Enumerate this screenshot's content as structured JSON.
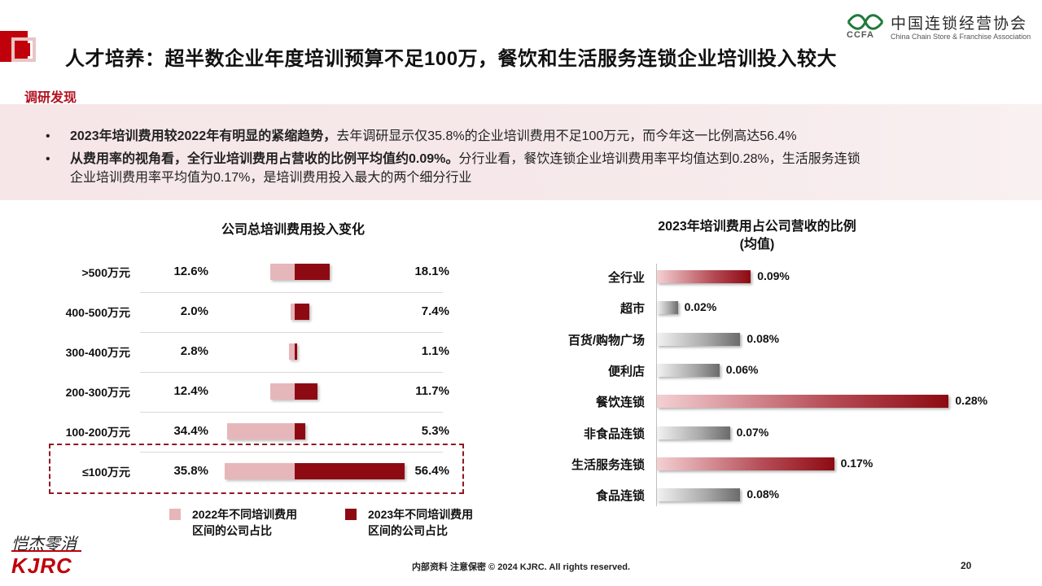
{
  "header": {
    "title": "人才培养：超半数企业年度培训预算不足100万，餐饮和生活服务连锁企业培训投入较大",
    "logo_cn": "中国连锁经营协会",
    "logo_en": "China Chain Store & Franchise Association",
    "logo_ccfa": "CCFA"
  },
  "findings": {
    "label": "调研发现",
    "bullets": [
      {
        "bold": "2023年培训费用较2022年有明显的紧缩趋势，",
        "text": "去年调研显示仅35.8%的企业培训费用不足100万元，而今年这一比例高达56.4%"
      },
      {
        "bold": "从费用率的视角看，全行业培训费用占营收的比例平均值约0.09%。",
        "text": "分行业看，餐饮连锁企业培训费用率平均值达到0.28%，生活服务连锁",
        "text2": "企业培训费用率平均值为0.17%，是培训费用投入最大的两个细分行业"
      }
    ]
  },
  "chart_data": [
    {
      "type": "bar",
      "title": "公司总培训费用投入变化",
      "categories": [
        ">500万元",
        "400-500万元",
        "300-400万元",
        "200-300万元",
        "100-200万元",
        "≤100万元"
      ],
      "series": [
        {
          "name": "2022年不同培训费用区间的公司占比",
          "values": [
            12.6,
            2.0,
            2.8,
            12.4,
            34.4,
            35.8
          ],
          "labels": [
            "12.6%",
            "2.0%",
            "2.8%",
            "12.4%",
            "34.4%",
            "35.8%"
          ],
          "color": "#e6b7ba"
        },
        {
          "name": "2023年不同培训费用区间的公司占比",
          "values": [
            18.1,
            7.4,
            1.1,
            11.7,
            5.3,
            56.4
          ],
          "labels": [
            "18.1%",
            "7.4%",
            "1.1%",
            "11.7%",
            "5.3%",
            "56.4%"
          ],
          "color": "#8e0a12"
        }
      ],
      "legend": [
        {
          "line1": "2022年不同培训费用",
          "line2": "区间的公司占比"
        },
        {
          "line1": "2023年不同培训费用",
          "line2": "区间的公司占比"
        }
      ]
    },
    {
      "type": "bar",
      "title_line1": "2023年培训费用占公司营收的比例",
      "title_line2": "(均值)",
      "categories": [
        "全行业",
        "超市",
        "百货/购物广场",
        "便利店",
        "餐饮连锁",
        "非食品连锁",
        "生活服务连锁",
        "食品连锁"
      ],
      "values": [
        0.09,
        0.02,
        0.08,
        0.06,
        0.28,
        0.07,
        0.17,
        0.08
      ],
      "labels": [
        "0.09%",
        "0.02%",
        "0.08%",
        "0.06%",
        "0.28%",
        "0.07%",
        "0.17%",
        "0.08%"
      ],
      "highlight": [
        true,
        false,
        false,
        false,
        true,
        false,
        true,
        false
      ]
    }
  ],
  "footer": {
    "brand_script": "恺杰零消",
    "brand": "KJRC",
    "text": "内部资料 注意保密  © 2024 KJRC. All rights reserved.",
    "page": "20"
  }
}
